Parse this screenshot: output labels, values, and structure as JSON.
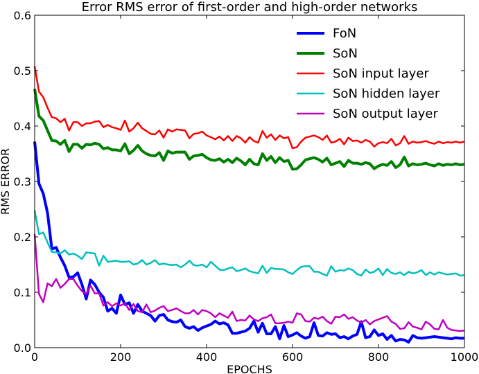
{
  "chart_data": {
    "type": "line",
    "title": "Error RMS error of first-order and high-order networks",
    "xlabel": "EPOCHS",
    "ylabel": "RMS ERROR",
    "xlim": [
      0,
      1000
    ],
    "ylim": [
      0,
      0.6
    ],
    "xticks": [
      0,
      200,
      400,
      600,
      800,
      1000
    ],
    "yticks": [
      0.0,
      0.1,
      0.2,
      0.3,
      0.4,
      0.5,
      0.6
    ],
    "xtick_labels": [
      "0",
      "200",
      "400",
      "600",
      "800",
      "1000"
    ],
    "ytick_labels": [
      "0.0",
      "0.1",
      "0.2",
      "0.3",
      "0.4",
      "0.5",
      "0.6"
    ],
    "grid": false,
    "legend_position": "top-right",
    "x": [
      0,
      10,
      20,
      30,
      40,
      50,
      60,
      70,
      80,
      90,
      100,
      110,
      120,
      130,
      140,
      150,
      160,
      170,
      180,
      190,
      200,
      210,
      220,
      230,
      240,
      250,
      260,
      270,
      280,
      290,
      300,
      310,
      320,
      330,
      340,
      350,
      360,
      370,
      380,
      390,
      400,
      410,
      420,
      430,
      440,
      450,
      460,
      470,
      480,
      490,
      500,
      510,
      520,
      530,
      540,
      550,
      560,
      570,
      580,
      590,
      600,
      610,
      620,
      630,
      640,
      650,
      660,
      670,
      680,
      690,
      700,
      710,
      720,
      730,
      740,
      750,
      760,
      770,
      780,
      790,
      800,
      810,
      820,
      830,
      840,
      850,
      860,
      870,
      880,
      890,
      900,
      910,
      920,
      930,
      940,
      950,
      960,
      970,
      980,
      990,
      1000
    ],
    "series": [
      {
        "name": "FoN",
        "color": "#0000ff",
        "width": 4,
        "values": [
          0.372,
          0.296,
          0.278,
          0.243,
          0.178,
          0.181,
          0.163,
          0.148,
          0.127,
          0.128,
          0.135,
          0.114,
          0.088,
          0.122,
          0.114,
          0.1,
          0.091,
          0.066,
          0.071,
          0.062,
          0.095,
          0.078,
          0.081,
          0.062,
          0.078,
          0.066,
          0.062,
          0.058,
          0.048,
          0.058,
          0.06,
          0.05,
          0.047,
          0.046,
          0.05,
          0.038,
          0.035,
          0.038,
          0.031,
          0.036,
          0.039,
          0.042,
          0.048,
          0.043,
          0.045,
          0.041,
          0.026,
          0.026,
          0.028,
          0.03,
          0.035,
          0.048,
          0.028,
          0.044,
          0.025,
          0.025,
          0.038,
          0.016,
          0.04,
          0.02,
          0.023,
          0.027,
          0.021,
          0.017,
          0.02,
          0.045,
          0.022,
          0.021,
          0.027,
          0.024,
          0.025,
          0.018,
          0.02,
          0.016,
          0.021,
          0.024,
          0.047,
          0.018,
          0.02,
          0.032,
          0.022,
          0.025,
          0.015,
          0.022,
          0.012,
          0.015,
          0.014,
          0.01,
          0.022,
          0.018,
          0.017,
          0.018,
          0.019,
          0.02,
          0.019,
          0.018,
          0.017,
          0.016,
          0.018,
          0.017,
          0.017
        ]
      },
      {
        "name": "SoN",
        "color": "#008000",
        "width": 4,
        "values": [
          0.467,
          0.418,
          0.41,
          0.392,
          0.374,
          0.373,
          0.367,
          0.374,
          0.354,
          0.367,
          0.367,
          0.36,
          0.367,
          0.366,
          0.369,
          0.367,
          0.359,
          0.361,
          0.357,
          0.357,
          0.355,
          0.368,
          0.35,
          0.356,
          0.365,
          0.355,
          0.35,
          0.347,
          0.346,
          0.352,
          0.338,
          0.355,
          0.351,
          0.353,
          0.353,
          0.353,
          0.34,
          0.346,
          0.347,
          0.349,
          0.343,
          0.339,
          0.338,
          0.341,
          0.335,
          0.34,
          0.334,
          0.342,
          0.337,
          0.33,
          0.34,
          0.332,
          0.33,
          0.35,
          0.338,
          0.345,
          0.334,
          0.343,
          0.336,
          0.338,
          0.322,
          0.323,
          0.33,
          0.339,
          0.341,
          0.343,
          0.34,
          0.335,
          0.342,
          0.33,
          0.333,
          0.336,
          0.327,
          0.338,
          0.333,
          0.333,
          0.331,
          0.334,
          0.332,
          0.323,
          0.328,
          0.331,
          0.329,
          0.336,
          0.325,
          0.33,
          0.344,
          0.328,
          0.332,
          0.33,
          0.331,
          0.333,
          0.33,
          0.328,
          0.332,
          0.329,
          0.331,
          0.33,
          0.332,
          0.33,
          0.331
        ]
      },
      {
        "name": "SoN input layer",
        "color": "#ff0000",
        "width": 2.5,
        "values": [
          0.508,
          0.462,
          0.452,
          0.433,
          0.416,
          0.414,
          0.407,
          0.413,
          0.392,
          0.407,
          0.407,
          0.4,
          0.405,
          0.405,
          0.408,
          0.409,
          0.398,
          0.402,
          0.398,
          0.396,
          0.393,
          0.41,
          0.39,
          0.396,
          0.406,
          0.396,
          0.391,
          0.386,
          0.385,
          0.392,
          0.379,
          0.394,
          0.39,
          0.394,
          0.393,
          0.392,
          0.378,
          0.386,
          0.387,
          0.39,
          0.383,
          0.38,
          0.376,
          0.381,
          0.374,
          0.382,
          0.373,
          0.382,
          0.378,
          0.37,
          0.38,
          0.373,
          0.37,
          0.391,
          0.379,
          0.385,
          0.375,
          0.383,
          0.378,
          0.38,
          0.36,
          0.362,
          0.372,
          0.379,
          0.381,
          0.383,
          0.38,
          0.375,
          0.383,
          0.37,
          0.372,
          0.377,
          0.367,
          0.379,
          0.373,
          0.374,
          0.37,
          0.375,
          0.372,
          0.363,
          0.369,
          0.371,
          0.369,
          0.377,
          0.365,
          0.369,
          0.382,
          0.368,
          0.372,
          0.37,
          0.371,
          0.373,
          0.37,
          0.368,
          0.372,
          0.369,
          0.371,
          0.37,
          0.372,
          0.37,
          0.372
        ]
      },
      {
        "name": "SoN hidden layer",
        "color": "#00bfbf",
        "width": 2.5,
        "values": [
          0.248,
          0.205,
          0.208,
          0.19,
          0.173,
          0.172,
          0.17,
          0.176,
          0.168,
          0.17,
          0.166,
          0.16,
          0.172,
          0.171,
          0.17,
          0.148,
          0.166,
          0.155,
          0.156,
          0.157,
          0.155,
          0.155,
          0.156,
          0.15,
          0.152,
          0.158,
          0.15,
          0.153,
          0.158,
          0.15,
          0.152,
          0.15,
          0.149,
          0.15,
          0.145,
          0.15,
          0.157,
          0.149,
          0.148,
          0.15,
          0.145,
          0.155,
          0.148,
          0.141,
          0.14,
          0.143,
          0.145,
          0.138,
          0.14,
          0.143,
          0.138,
          0.136,
          0.134,
          0.148,
          0.135,
          0.144,
          0.142,
          0.142,
          0.141,
          0.136,
          0.133,
          0.14,
          0.146,
          0.147,
          0.147,
          0.137,
          0.137,
          0.133,
          0.13,
          0.147,
          0.137,
          0.14,
          0.139,
          0.143,
          0.14,
          0.133,
          0.13,
          0.141,
          0.135,
          0.137,
          0.143,
          0.131,
          0.142,
          0.135,
          0.133,
          0.136,
          0.131,
          0.137,
          0.134,
          0.136,
          0.14,
          0.131,
          0.136,
          0.132,
          0.136,
          0.134,
          0.132,
          0.133,
          0.134,
          0.13,
          0.131
        ]
      },
      {
        "name": "SoN output layer",
        "color": "#bf00bf",
        "width": 2.5,
        "values": [
          0.205,
          0.097,
          0.082,
          0.116,
          0.111,
          0.124,
          0.108,
          0.115,
          0.124,
          0.124,
          0.112,
          0.102,
          0.097,
          0.112,
          0.098,
          0.098,
          0.076,
          0.082,
          0.075,
          0.08,
          0.076,
          0.08,
          0.068,
          0.079,
          0.066,
          0.064,
          0.078,
          0.064,
          0.067,
          0.072,
          0.075,
          0.066,
          0.068,
          0.071,
          0.066,
          0.062,
          0.062,
          0.068,
          0.06,
          0.068,
          0.066,
          0.062,
          0.055,
          0.062,
          0.058,
          0.054,
          0.065,
          0.048,
          0.05,
          0.049,
          0.058,
          0.051,
          0.048,
          0.053,
          0.055,
          0.06,
          0.044,
          0.044,
          0.045,
          0.047,
          0.045,
          0.062,
          0.06,
          0.048,
          0.047,
          0.054,
          0.052,
          0.056,
          0.048,
          0.043,
          0.056,
          0.055,
          0.06,
          0.052,
          0.055,
          0.049,
          0.045,
          0.05,
          0.042,
          0.048,
          0.051,
          0.054,
          0.057,
          0.047,
          0.043,
          0.034,
          0.035,
          0.046,
          0.038,
          0.036,
          0.033,
          0.047,
          0.042,
          0.034,
          0.033,
          0.05,
          0.036,
          0.032,
          0.031,
          0.03,
          0.031
        ]
      }
    ]
  }
}
